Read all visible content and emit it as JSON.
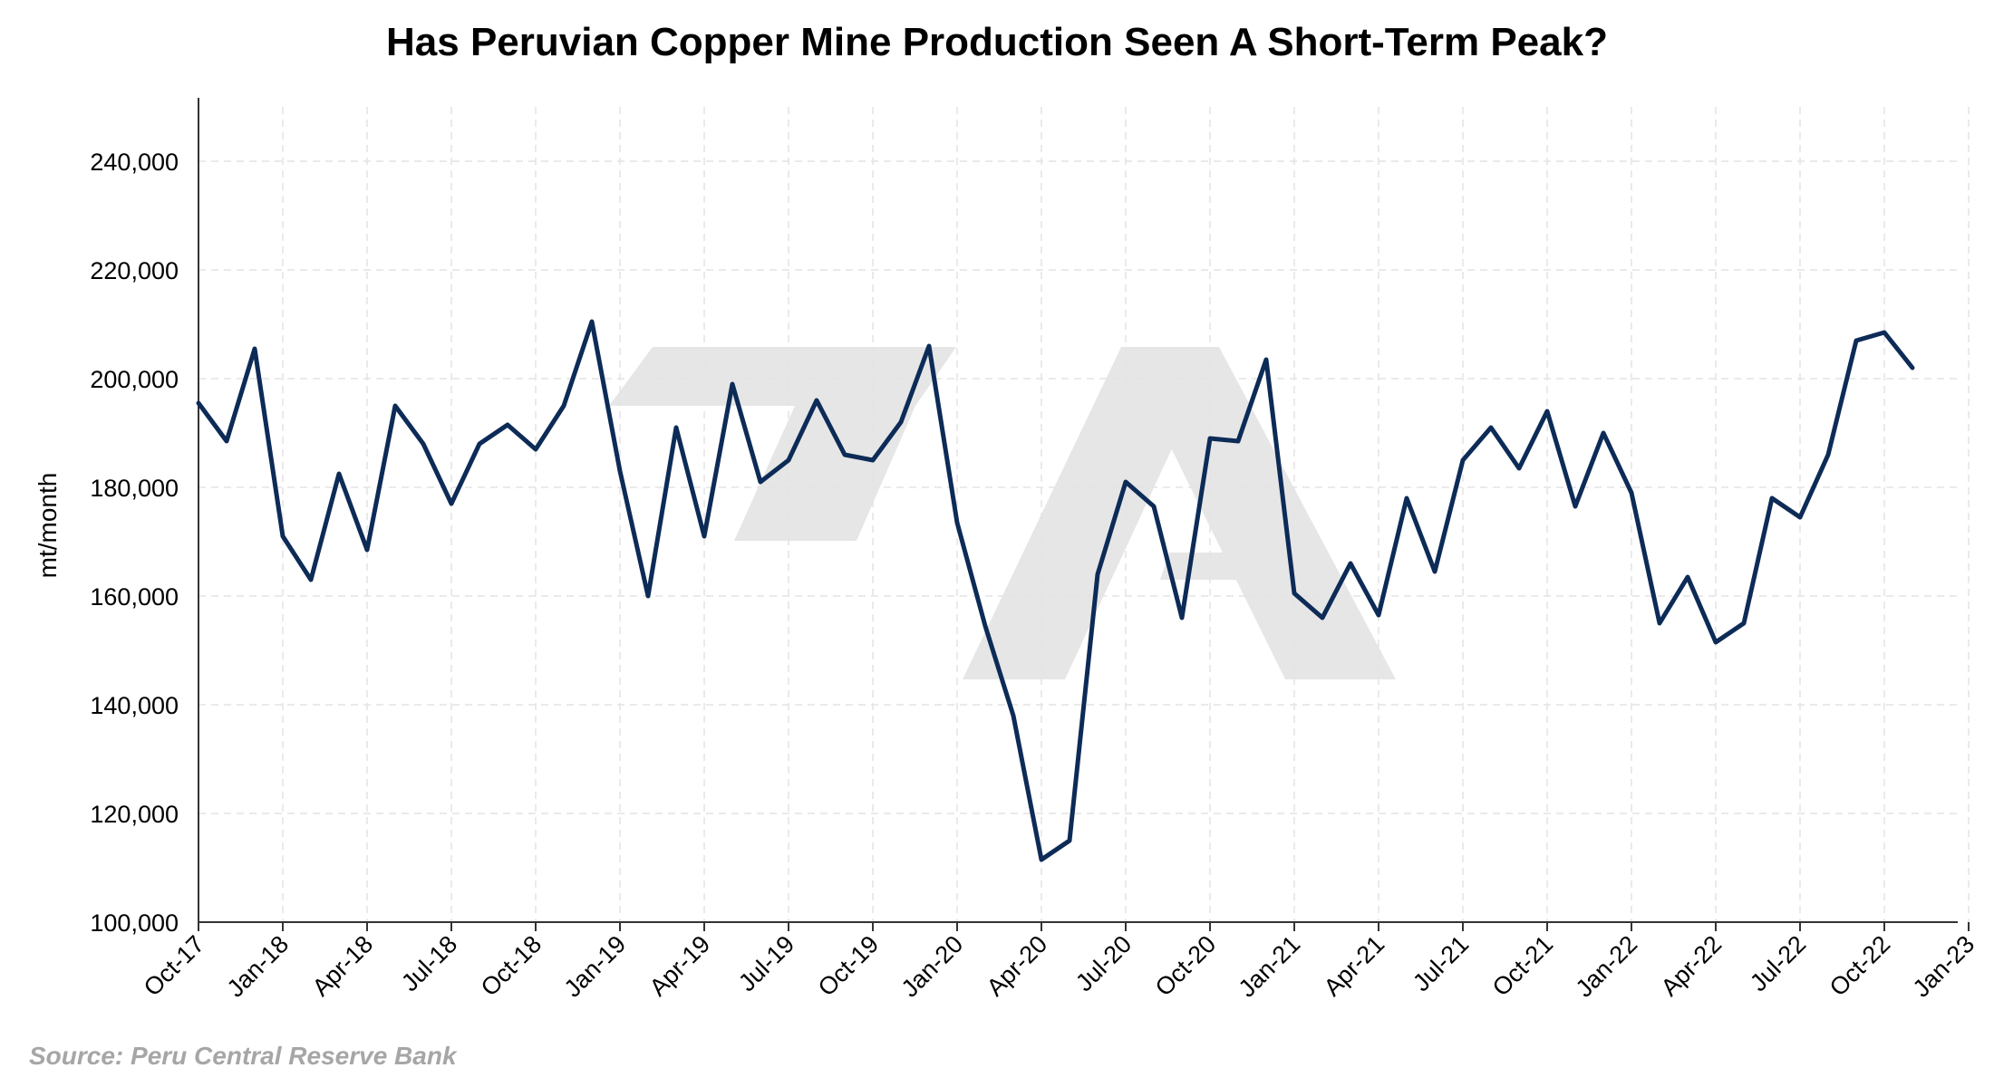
{
  "chart_data": {
    "type": "line",
    "title": "Has Peruvian Copper Mine Production Seen A Short-Term Peak?",
    "ylabel": "mt/month",
    "xlabel": "",
    "source": "Source: Peru Central Reserve Bank",
    "ylim": [
      100000,
      250000
    ],
    "y_ticks": [
      "100,000",
      "120,000",
      "140,000",
      "160,000",
      "180,000",
      "200,000",
      "220,000",
      "240,000"
    ],
    "x_ticks": [
      "Oct-17",
      "Jan-18",
      "Apr-18",
      "Jul-18",
      "Oct-18",
      "Jan-19",
      "Apr-19",
      "Jul-19",
      "Oct-19",
      "Jan-20",
      "Apr-20",
      "Jul-20",
      "Oct-20",
      "Jan-21",
      "Apr-21",
      "Jul-21",
      "Oct-21",
      "Jan-22",
      "Apr-22",
      "Jul-22",
      "Oct-22",
      "Jan-23"
    ],
    "grid": true,
    "series": [
      {
        "color": "#0d2b57",
        "x": [
          "Oct-17",
          "Nov-17",
          "Dec-17",
          "Jan-18",
          "Feb-18",
          "Mar-18",
          "Apr-18",
          "May-18",
          "Jun-18",
          "Jul-18",
          "Aug-18",
          "Sep-18",
          "Oct-18",
          "Nov-18",
          "Dec-18",
          "Jan-19",
          "Feb-19",
          "Mar-19",
          "Apr-19",
          "May-19",
          "Jun-19",
          "Jul-19",
          "Aug-19",
          "Sep-19",
          "Oct-19",
          "Nov-19",
          "Dec-19",
          "Jan-20",
          "Feb-20",
          "Mar-20",
          "Apr-20",
          "May-20",
          "Jun-20",
          "Jul-20",
          "Aug-20",
          "Sep-20",
          "Oct-20",
          "Nov-20",
          "Dec-20",
          "Jan-21",
          "Feb-21",
          "Mar-21",
          "Apr-21",
          "May-21",
          "Jun-21",
          "Jul-21",
          "Aug-21",
          "Sep-21",
          "Oct-21",
          "Nov-21",
          "Dec-21",
          "Jan-22",
          "Feb-22",
          "Mar-22",
          "Apr-22",
          "May-22",
          "Jun-22",
          "Jul-22",
          "Aug-22",
          "Sep-22",
          "Oct-22",
          "Nov-22"
        ],
        "values": [
          195500,
          188500,
          205500,
          171000,
          163000,
          182500,
          168500,
          195000,
          188000,
          177000,
          188000,
          191500,
          187000,
          195000,
          210500,
          183000,
          160000,
          191000,
          171000,
          199000,
          181000,
          185000,
          196000,
          186000,
          185000,
          192000,
          206000,
          173500,
          154500,
          138000,
          111500,
          115000,
          164000,
          181000,
          176500,
          156000,
          189000,
          188500,
          203500,
          160500,
          156000,
          166000,
          156500,
          178000,
          164500,
          185000,
          191000,
          183500,
          194000,
          176500,
          190000,
          179000,
          155000,
          163500,
          151500,
          155000,
          178000,
          174500,
          186000,
          207000,
          208500,
          202000
        ]
      }
    ]
  }
}
